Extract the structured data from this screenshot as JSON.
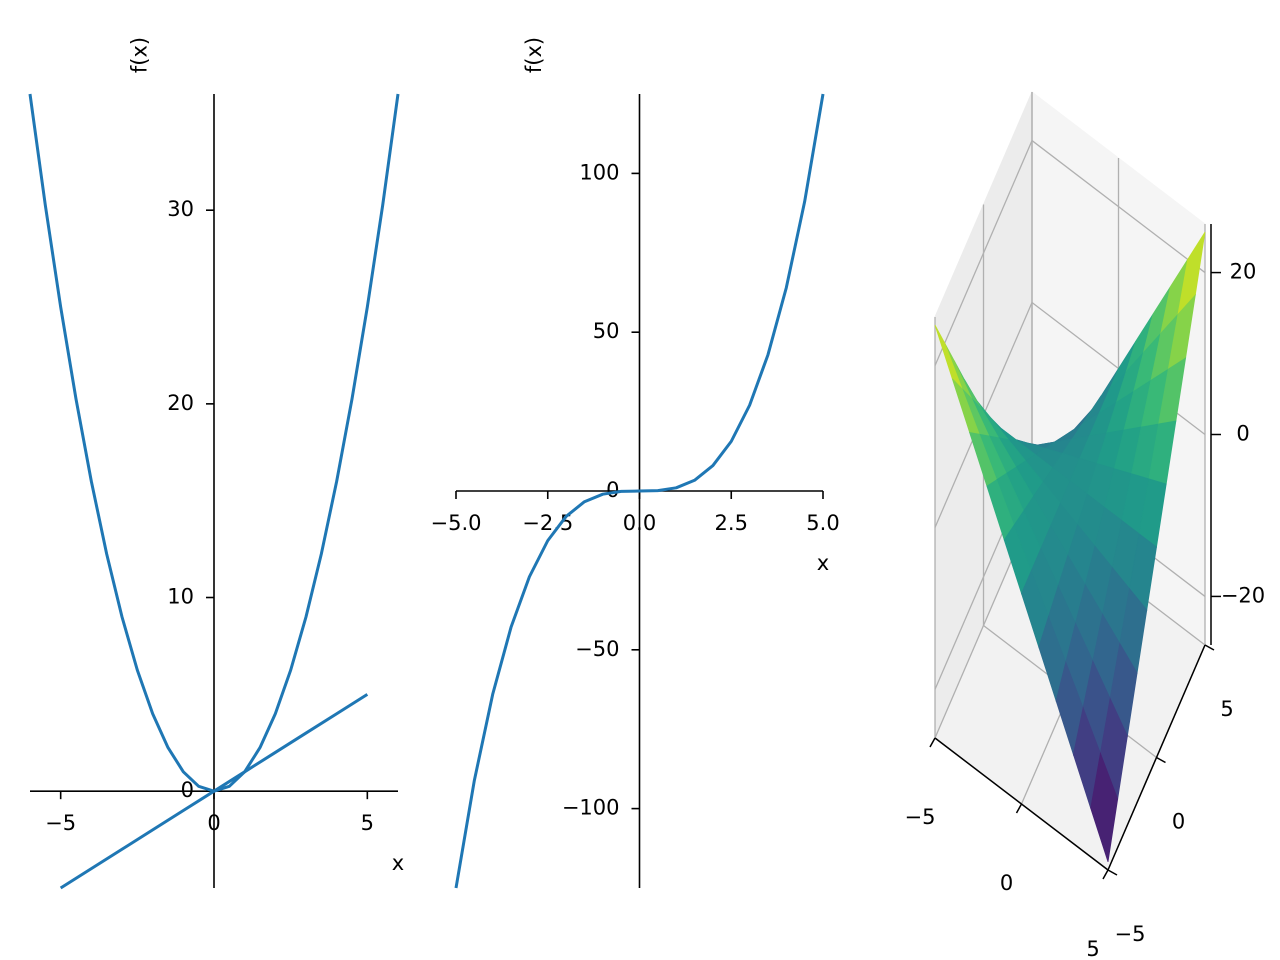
{
  "chart_data": [
    {
      "type": "line",
      "xlabel": "x",
      "ylabel": "f(x)",
      "xlim": [
        -6,
        6
      ],
      "ylim": [
        -5,
        36
      ],
      "xticks": [
        {
          "value": -5,
          "label": "−5"
        },
        0,
        5
      ],
      "yticks": [
        0,
        10,
        20,
        30
      ],
      "series": [
        {
          "color": "#1f77b4",
          "x": [
            -6,
            -5.5,
            -5,
            -4.5,
            -4,
            -3.5,
            -3,
            -2.5,
            -2,
            -1.5,
            -1,
            -0.5,
            0,
            0.5,
            1,
            1.5,
            2,
            2.5,
            3,
            3.5,
            4,
            4.5,
            5,
            5.5,
            6
          ],
          "values": [
            36,
            30.25,
            25,
            20.25,
            16,
            12.25,
            9,
            6.25,
            4,
            2.25,
            1,
            0.25,
            0,
            0.25,
            1,
            2.25,
            4,
            6.25,
            9,
            12.25,
            16,
            20.25,
            25,
            30.25,
            36
          ]
        },
        {
          "color": "#1f77b4",
          "x": [
            -5,
            -4,
            -3,
            -2,
            -1,
            0,
            1,
            2,
            3,
            4,
            5
          ],
          "values": [
            -5,
            -4,
            -3,
            -2,
            -1,
            0,
            1,
            2,
            3,
            4,
            5
          ]
        }
      ]
    },
    {
      "type": "line",
      "xlabel": "x",
      "ylabel": "f(x)",
      "xlim": [
        -5,
        5
      ],
      "ylim": [
        -125,
        125
      ],
      "xticks": [
        {
          "value": -5,
          "label": "−5.0"
        },
        {
          "value": -2.5,
          "label": "−2.5"
        },
        {
          "value": 0,
          "label": "0.0"
        },
        2.5,
        {
          "value": 5,
          "label": "5.0"
        }
      ],
      "yticks": [
        {
          "value": -100,
          "label": "−100"
        },
        {
          "value": -50,
          "label": "−50"
        },
        0,
        50,
        100
      ],
      "series": [
        {
          "color": "#1f77b4",
          "x": [
            -5,
            -4.5,
            -4,
            -3.5,
            -3,
            -2.5,
            -2,
            -1.5,
            -1,
            -0.5,
            0,
            0.5,
            1,
            1.5,
            2,
            2.5,
            3,
            3.5,
            4,
            4.5,
            5
          ],
          "values": [
            -125,
            -91.125,
            -64,
            -42.875,
            -27,
            -15.625,
            -8,
            -3.375,
            -1,
            -0.125,
            0,
            0.125,
            1,
            3.375,
            8,
            15.625,
            27,
            42.875,
            64,
            91.125,
            125
          ]
        }
      ]
    },
    {
      "type": "surface",
      "colormap": "viridis",
      "xlim": [
        -5,
        5
      ],
      "ylim": [
        -5,
        5
      ],
      "zlim": [
        -26,
        26
      ],
      "xticks": [
        {
          "value": -5,
          "label": "−5"
        },
        0,
        5
      ],
      "yticks": [
        {
          "value": -5,
          "label": "−5"
        },
        0,
        5
      ],
      "zticks": [
        {
          "value": -20,
          "label": "−20"
        },
        0,
        20
      ],
      "x": [
        -5,
        -4,
        -3,
        -2,
        -1,
        0,
        1,
        2,
        3,
        4,
        5
      ],
      "y": [
        -5,
        -4,
        -3,
        -2,
        -1,
        0,
        1,
        2,
        3,
        4,
        5
      ],
      "z": [
        [
          25,
          20,
          15,
          10,
          5,
          0,
          -5,
          -10,
          -15,
          -20,
          -25
        ],
        [
          20,
          16,
          12,
          8,
          4,
          0,
          -4,
          -8,
          -12,
          -16,
          -20
        ],
        [
          15,
          12,
          9,
          6,
          3,
          0,
          -3,
          -6,
          -9,
          -12,
          -15
        ],
        [
          10,
          8,
          6,
          4,
          2,
          0,
          -2,
          -4,
          -6,
          -8,
          -10
        ],
        [
          5,
          4,
          3,
          2,
          1,
          0,
          -1,
          -2,
          -3,
          -4,
          -5
        ],
        [
          0,
          0,
          0,
          0,
          0,
          0,
          0,
          0,
          0,
          0,
          0
        ],
        [
          -5,
          -4,
          -3,
          -2,
          -1,
          0,
          1,
          2,
          3,
          4,
          5
        ],
        [
          -10,
          -8,
          -6,
          -4,
          -2,
          0,
          2,
          4,
          6,
          8,
          10
        ],
        [
          -15,
          -12,
          -9,
          -6,
          -3,
          0,
          3,
          6,
          9,
          12,
          15
        ],
        [
          -20,
          -16,
          -12,
          -8,
          -4,
          0,
          4,
          8,
          12,
          16,
          20
        ],
        [
          -25,
          -20,
          -15,
          -10,
          -5,
          0,
          5,
          10,
          15,
          20,
          25
        ]
      ]
    }
  ]
}
